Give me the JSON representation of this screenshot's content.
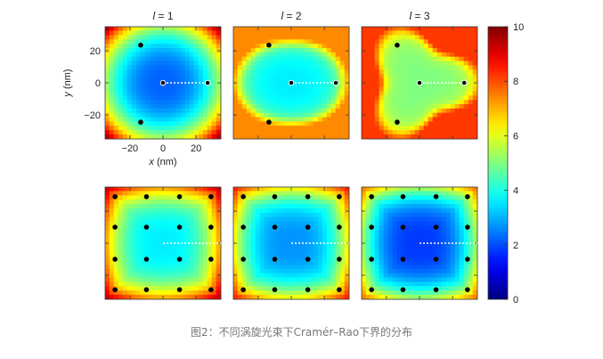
{
  "caption": "图2：不同涡旋光束下Cramér–Rao下界的分布",
  "chart_data": {
    "type": "heatmap",
    "columns": [
      {
        "l_symbol": "l",
        "eq": " = ",
        "value": "1"
      },
      {
        "l_symbol": "l",
        "eq": " = ",
        "value": "2"
      },
      {
        "l_symbol": "l",
        "eq": " = ",
        "value": "3"
      }
    ],
    "xlabel_var": "x",
    "xlabel_unit": " (nm)",
    "ylabel_var": "y",
    "ylabel_unit": " (nm)",
    "xlim": [
      -35,
      35
    ],
    "ylim": [
      35,
      -35
    ],
    "x_ticks": [
      "−20",
      "0",
      "20"
    ],
    "x_tick_values": [
      -20,
      0,
      20
    ],
    "y_ticks": [
      "−20",
      "0",
      "20"
    ],
    "y_tick_values": [
      -20,
      0,
      20
    ],
    "colorbar": {
      "range": [
        0,
        10
      ],
      "ticks": [
        "0",
        "2",
        "4",
        "6",
        "8",
        "10"
      ],
      "tick_values": [
        0,
        2,
        4,
        6,
        8,
        10
      ],
      "colormap": "jet"
    },
    "rows": [
      {
        "row": "top",
        "panels": [
          {
            "l": 1,
            "points": [
              [
                -13.5,
                -24.5
              ],
              [
                0,
                0
              ],
              [
                27,
                0
              ],
              [
                -13.5,
                23.5
              ]
            ],
            "line": [
              [
                0,
                0
              ],
              [
                27,
                0
              ]
            ]
          },
          {
            "l": 2,
            "points": [
              [
                -13.5,
                -24.5
              ],
              [
                0,
                0
              ],
              [
                27,
                0
              ],
              [
                -13.5,
                23.5
              ]
            ],
            "line": [
              [
                0,
                0
              ],
              [
                27,
                0
              ]
            ]
          },
          {
            "l": 3,
            "points": [
              [
                -13.5,
                -24.5
              ],
              [
                0,
                0
              ],
              [
                27,
                0
              ],
              [
                -13.5,
                23.5
              ]
            ],
            "line": [
              [
                0,
                0
              ],
              [
                27,
                0
              ]
            ]
          }
        ]
      },
      {
        "row": "bottom",
        "panels": [
          {
            "l": 1,
            "grid": [
              -29,
              -10,
              10,
              29
            ],
            "line": [
              [
                0,
                0
              ],
              [
                35,
                0
              ]
            ]
          },
          {
            "l": 2,
            "grid": [
              -29,
              -10,
              10,
              29
            ],
            "line": [
              [
                0,
                0
              ],
              [
                35,
                0
              ]
            ]
          },
          {
            "l": 3,
            "grid": [
              -29,
              -10,
              10,
              29
            ],
            "line": [
              [
                0,
                0
              ],
              [
                35,
                0
              ]
            ]
          }
        ]
      }
    ]
  }
}
